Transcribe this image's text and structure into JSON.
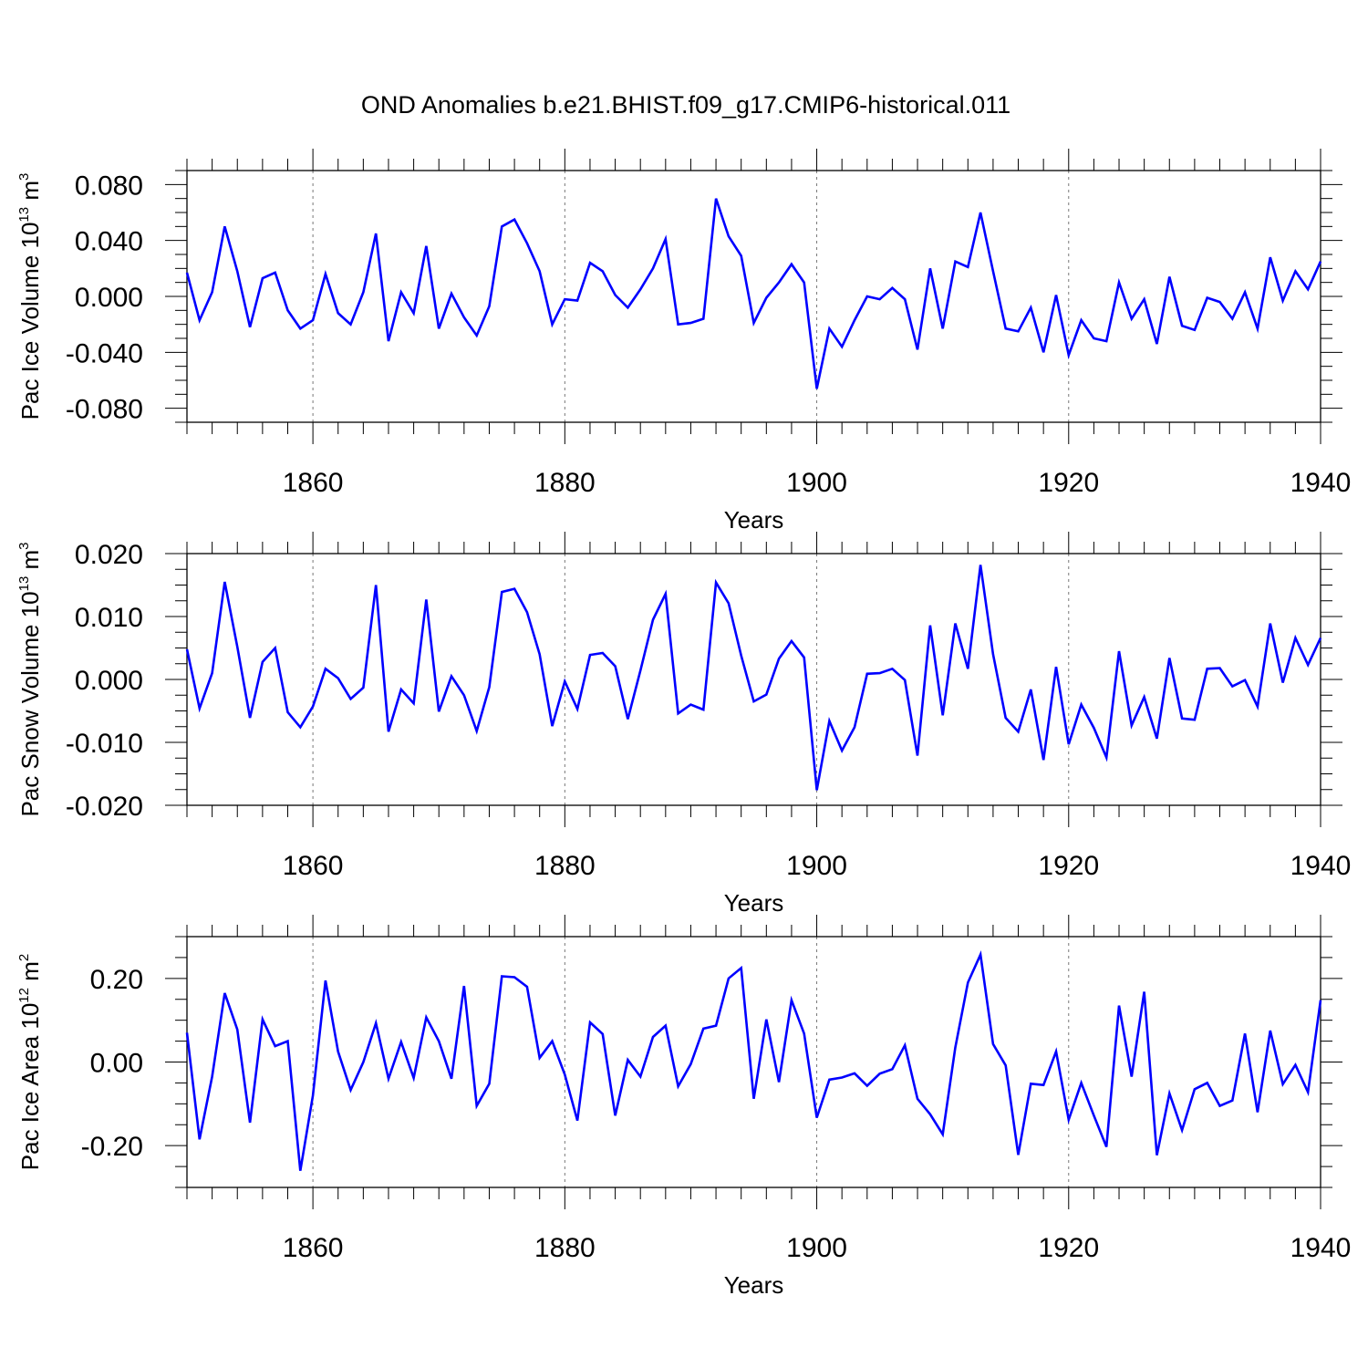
{
  "figure": {
    "title": "OND Anomalies b.e21.BHIST.f09_g17.CMIP6-historical.011",
    "line_color": "#0000ff"
  },
  "chart_data": [
    {
      "type": "line",
      "title": "OND Anomalies b.e21.BHIST.f09_g17.CMIP6-historical.011",
      "ylabel": {
        "text": "Pac Ice Volume 10",
        "exp": "13",
        "unit": " m",
        "unit_exp": "3"
      },
      "xlabel": "Years",
      "xlim": [
        1850,
        1940
      ],
      "ylim": [
        -0.09,
        0.09
      ],
      "yticks": [
        {
          "value": 0.08,
          "label": "0.080"
        },
        {
          "value": 0.04,
          "label": "0.040"
        },
        {
          "value": 0.0,
          "label": "0.000"
        },
        {
          "value": -0.04,
          "label": "-0.040"
        },
        {
          "value": -0.08,
          "label": "-0.080"
        }
      ],
      "xticks": [
        {
          "value": 1860,
          "label": "1860"
        },
        {
          "value": 1880,
          "label": "1880"
        },
        {
          "value": 1900,
          "label": "1900"
        },
        {
          "value": 1920,
          "label": "1920"
        },
        {
          "value": 1940,
          "label": "1940"
        }
      ],
      "x_start": 1850,
      "values": [
        0.017,
        -0.017,
        0.003,
        0.05,
        0.018,
        -0.022,
        0.013,
        0.017,
        -0.01,
        -0.023,
        -0.017,
        0.016,
        -0.012,
        -0.02,
        0.003,
        0.045,
        -0.032,
        0.003,
        -0.012,
        0.036,
        -0.023,
        0.002,
        -0.015,
        -0.028,
        -0.007,
        0.05,
        0.055,
        0.038,
        0.018,
        -0.02,
        -0.002,
        -0.003,
        0.024,
        0.018,
        0.001,
        -0.008,
        0.005,
        0.02,
        0.041,
        -0.02,
        -0.019,
        -0.016,
        0.07,
        0.043,
        0.029,
        -0.019,
        -0.001,
        0.01,
        0.023,
        0.01,
        -0.066,
        -0.023,
        -0.036,
        -0.017,
        0.0,
        -0.002,
        0.006,
        -0.002,
        -0.038,
        0.02,
        -0.023,
        0.025,
        0.021,
        0.06,
        0.018,
        -0.023,
        -0.025,
        -0.008,
        -0.04,
        0.001,
        -0.042,
        -0.017,
        -0.03,
        -0.032,
        0.01,
        -0.016,
        -0.002,
        -0.034,
        0.014,
        -0.021,
        -0.024,
        -0.001,
        -0.004,
        -0.016,
        0.003,
        -0.023,
        0.028,
        -0.003,
        0.018,
        0.005,
        0.025
      ]
    },
    {
      "type": "line",
      "ylabel": {
        "text": "Pac Snow Volume 10",
        "exp": "13",
        "unit": " m",
        "unit_exp": "3"
      },
      "xlabel": "Years",
      "xlim": [
        1850,
        1940
      ],
      "ylim": [
        -0.02,
        0.02
      ],
      "yticks": [
        {
          "value": 0.02,
          "label": "0.020"
        },
        {
          "value": 0.01,
          "label": "0.010"
        },
        {
          "value": 0.0,
          "label": "0.000"
        },
        {
          "value": -0.01,
          "label": "-0.010"
        },
        {
          "value": -0.02,
          "label": "-0.020"
        }
      ],
      "xticks": [
        {
          "value": 1860,
          "label": "1860"
        },
        {
          "value": 1880,
          "label": "1880"
        },
        {
          "value": 1900,
          "label": "1900"
        },
        {
          "value": 1920,
          "label": "1920"
        },
        {
          "value": 1940,
          "label": "1940"
        }
      ],
      "x_start": 1850,
      "values": [
        0.0048,
        -0.0046,
        0.001,
        0.0155,
        0.0052,
        -0.0061,
        0.0028,
        0.005,
        -0.0052,
        -0.0076,
        -0.0043,
        0.0017,
        0.0002,
        -0.0031,
        -0.0013,
        0.015,
        -0.0083,
        -0.0016,
        -0.0038,
        0.0127,
        -0.0051,
        0.0005,
        -0.0025,
        -0.0082,
        -0.0012,
        0.0139,
        0.0144,
        0.0107,
        0.004,
        -0.0074,
        -0.0003,
        -0.0047,
        0.0039,
        0.0042,
        0.0021,
        -0.0063,
        0.0014,
        0.0095,
        0.0136,
        -0.0054,
        -0.004,
        -0.0048,
        0.0154,
        0.0121,
        0.0038,
        -0.0035,
        -0.0024,
        0.0033,
        0.0061,
        0.0035,
        -0.0176,
        -0.0066,
        -0.0113,
        -0.0076,
        0.0009,
        0.001,
        0.0017,
        -0.0001,
        -0.0121,
        0.0086,
        -0.0057,
        0.0089,
        0.0017,
        0.0182,
        0.004,
        -0.0061,
        -0.0083,
        -0.0016,
        -0.0128,
        0.002,
        -0.0103,
        -0.004,
        -0.0077,
        -0.0124,
        0.0045,
        -0.0073,
        -0.0028,
        -0.0094,
        0.0034,
        -0.0062,
        -0.0064,
        0.0017,
        0.0018,
        -0.0011,
        -0.0001,
        -0.0043,
        0.0089,
        -0.0005,
        0.0066,
        0.0023,
        0.0066
      ]
    },
    {
      "type": "line",
      "ylabel": {
        "text": "Pac Ice Area 10",
        "exp": "12",
        "unit": " m",
        "unit_exp": "2"
      },
      "xlabel": "Years",
      "xlim": [
        1850,
        1940
      ],
      "ylim": [
        -0.3,
        0.3
      ],
      "yticks": [
        {
          "value": 0.2,
          "label": "0.20"
        },
        {
          "value": 0.0,
          "label": "0.00"
        },
        {
          "value": -0.2,
          "label": "-0.20"
        }
      ],
      "xticks": [
        {
          "value": 1860,
          "label": "1860"
        },
        {
          "value": 1880,
          "label": "1880"
        },
        {
          "value": 1900,
          "label": "1900"
        },
        {
          "value": 1920,
          "label": "1920"
        },
        {
          "value": 1940,
          "label": "1940"
        }
      ],
      "x_start": 1850,
      "values": [
        0.07,
        -0.185,
        -0.035,
        0.165,
        0.078,
        -0.145,
        0.102,
        0.038,
        0.05,
        -0.26,
        -0.08,
        0.195,
        0.025,
        -0.067,
        0.0,
        0.093,
        -0.04,
        0.048,
        -0.038,
        0.107,
        0.05,
        -0.04,
        0.182,
        -0.105,
        -0.052,
        0.205,
        0.203,
        0.18,
        0.01,
        0.05,
        -0.03,
        -0.14,
        0.095,
        0.067,
        -0.128,
        0.005,
        -0.035,
        0.06,
        0.087,
        -0.058,
        -0.005,
        0.08,
        0.087,
        0.2,
        0.225,
        -0.088,
        0.102,
        -0.048,
        0.148,
        0.068,
        -0.133,
        -0.042,
        -0.037,
        -0.027,
        -0.057,
        -0.028,
        -0.017,
        0.04,
        -0.088,
        -0.125,
        -0.173,
        0.035,
        0.19,
        0.257,
        0.043,
        -0.008,
        -0.222,
        -0.052,
        -0.055,
        0.025,
        -0.138,
        -0.05,
        -0.128,
        -0.203,
        0.135,
        -0.035,
        0.168,
        -0.223,
        -0.075,
        -0.163,
        -0.065,
        -0.05,
        -0.105,
        -0.092,
        0.068,
        -0.12,
        0.075,
        -0.053,
        -0.007,
        -0.072,
        0.148
      ]
    }
  ]
}
